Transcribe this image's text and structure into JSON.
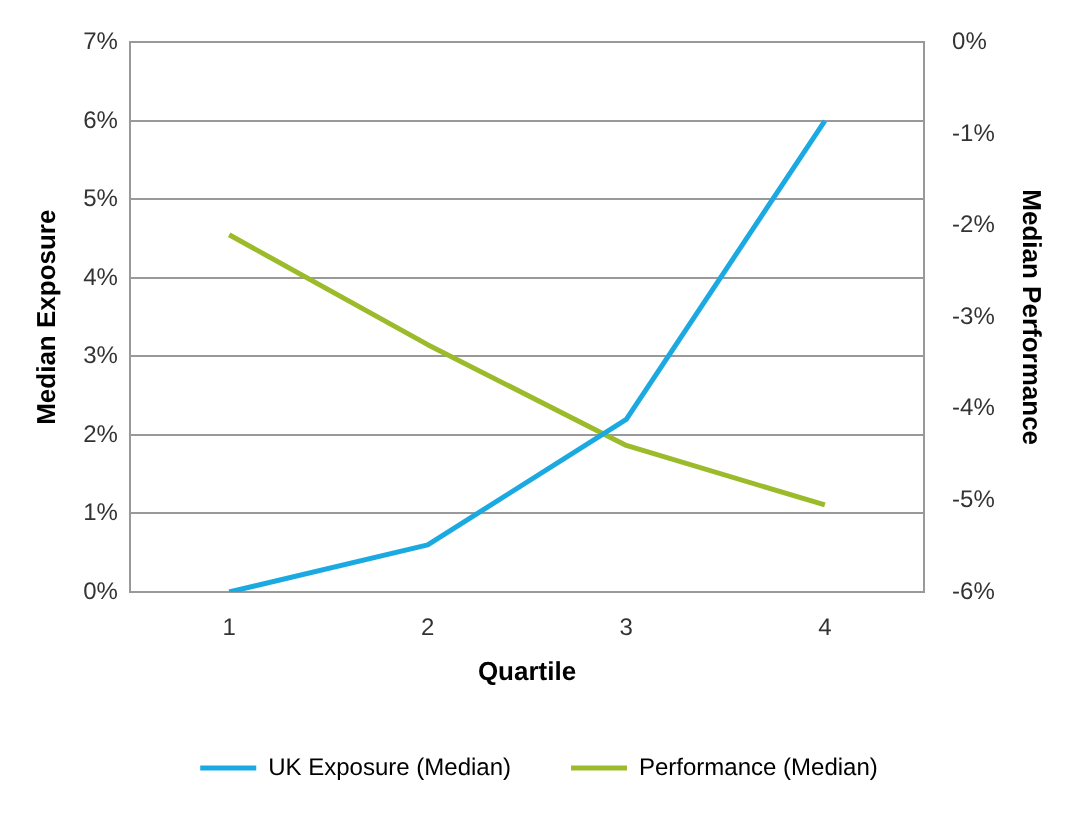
{
  "chart_data": {
    "type": "line",
    "xlabel": "Quartile",
    "ylabel": "Median Exposure",
    "y2label": "Median Performance",
    "categories": [
      "1",
      "2",
      "3",
      "4"
    ],
    "series": [
      {
        "name": "UK Exposure (Median)",
        "color": "#1ba9e1",
        "values": [
          0,
          0.6,
          2.2,
          6
        ]
      },
      {
        "name": "Performance (Median)",
        "color": "#9bbb2a",
        "values": [
          -2.1,
          -3.3,
          -4.4,
          -5.05
        ],
        "axis": "y2"
      }
    ],
    "ylim": [
      0,
      7
    ],
    "yticks": [
      {
        "value": 0,
        "label": "0%"
      },
      {
        "value": 1,
        "label": "1%"
      },
      {
        "value": 2,
        "label": "2%"
      },
      {
        "value": 3,
        "label": "3%"
      },
      {
        "value": 4,
        "label": "4%"
      },
      {
        "value": 5,
        "label": "5%"
      },
      {
        "value": 6,
        "label": "6%"
      },
      {
        "value": 7,
        "label": "7%"
      }
    ],
    "y2lim": [
      -6,
      0
    ],
    "y2ticks": [
      {
        "value": -6,
        "label": "-6%"
      },
      {
        "value": -5,
        "label": "-5%"
      },
      {
        "value": -4,
        "label": "-4%"
      },
      {
        "value": -3,
        "label": "-3%"
      },
      {
        "value": -2,
        "label": "-2%"
      },
      {
        "value": -1,
        "label": "-1%"
      },
      {
        "value": 0,
        "label": "0%"
      }
    ],
    "grid": "y",
    "legend": "bottom",
    "marker": "none",
    "line_style": "solid"
  }
}
